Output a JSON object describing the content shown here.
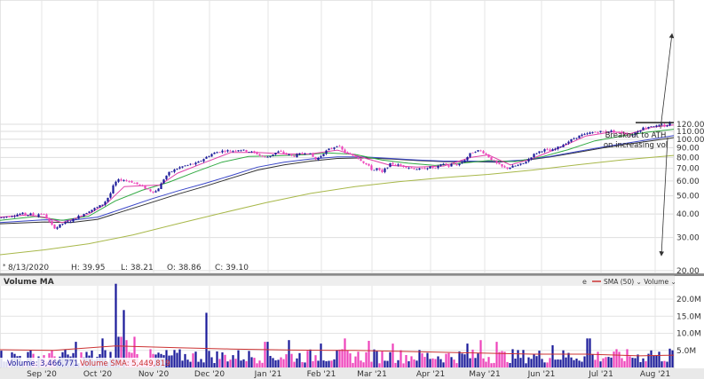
{
  "chart_data": {
    "type": "candlestick",
    "scale": "log",
    "grid": true,
    "price_ticks": [
      20,
      30,
      40,
      50,
      60,
      70,
      80,
      90,
      100,
      110,
      120
    ],
    "price_tick_labels": [
      "20.00",
      "30.00",
      "40.00",
      "50.00",
      "60.00",
      "70.00",
      "80.00",
      "90.00",
      "100.00",
      "110.00",
      "120.00"
    ],
    "x_labels": [
      "Sep '20",
      "Oct '20",
      "Nov '20",
      "Dec '20",
      "Jan '21",
      "Feb '21",
      "Mar '21",
      "Apr '21",
      "May '21",
      "Jun '21",
      "Jul '21",
      "Aug '21"
    ],
    "info": {
      "date": "8/13/2020",
      "high": "H: 39.95",
      "low": "L: 38.21",
      "open": "O: 38.86",
      "close": "C: 39.10"
    },
    "annotation": {
      "line1": "Breakout to ATH",
      "line2": "on increasing vol"
    },
    "volume_panel": {
      "title": "Volume MA",
      "legend": "SMA (50) ⌄ Volume ⌄",
      "legend_icon": "e",
      "tick_labels": [
        "5.0M",
        "10.0M",
        "15.0M",
        "20.0M"
      ],
      "volume_readout": "Volume: 3,466,771",
      "sma_readout": "Volume SMA: 5,449,819"
    },
    "price_series": [
      [
        0,
        38.2
      ],
      [
        5,
        38.6
      ],
      [
        10,
        39.0
      ],
      [
        15,
        39.3
      ],
      [
        20,
        39.8
      ],
      [
        25,
        40.2
      ],
      [
        30,
        39.6
      ],
      [
        35,
        40.0
      ],
      [
        40,
        39.0
      ],
      [
        45,
        40.4
      ],
      [
        50,
        39.5
      ],
      [
        55,
        36.5
      ],
      [
        58,
        35.0
      ],
      [
        60,
        34.2
      ],
      [
        63,
        33.6
      ],
      [
        66,
        34.5
      ],
      [
        70,
        35.5
      ],
      [
        75,
        36.0
      ],
      [
        80,
        36.8
      ],
      [
        85,
        38.0
      ],
      [
        90,
        39.2
      ],
      [
        95,
        40.2
      ],
      [
        100,
        41.5
      ],
      [
        105,
        42.5
      ],
      [
        110,
        43.5
      ],
      [
        115,
        44.8
      ],
      [
        120,
        47.5
      ],
      [
        125,
        52.0
      ],
      [
        128,
        57.0
      ],
      [
        131,
        59.5
      ],
      [
        135,
        61.0
      ],
      [
        140,
        60.5
      ],
      [
        145,
        60.0
      ],
      [
        150,
        59.0
      ],
      [
        155,
        57.5
      ],
      [
        160,
        56.0
      ],
      [
        165,
        54.5
      ],
      [
        170,
        53.0
      ],
      [
        175,
        52.5
      ],
      [
        180,
        56.0
      ],
      [
        185,
        62.0
      ],
      [
        190,
        66.0
      ],
      [
        195,
        68.0
      ],
      [
        200,
        70.0
      ],
      [
        205,
        71.5
      ],
      [
        210,
        72.5
      ],
      [
        215,
        73.5
      ],
      [
        220,
        74.0
      ],
      [
        225,
        76.0
      ],
      [
        230,
        79.0
      ],
      [
        235,
        81.5
      ],
      [
        240,
        84.0
      ],
      [
        245,
        85.5
      ],
      [
        250,
        86.5
      ],
      [
        255,
        87.0
      ],
      [
        260,
        86.5
      ],
      [
        265,
        87.5
      ],
      [
        270,
        88.0
      ],
      [
        275,
        87.0
      ],
      [
        280,
        86.0
      ],
      [
        285,
        85.0
      ],
      [
        290,
        83.5
      ],
      [
        295,
        81.0
      ],
      [
        300,
        80.0
      ],
      [
        305,
        82.0
      ],
      [
        310,
        84.5
      ],
      [
        315,
        86.0
      ],
      [
        320,
        84.0
      ],
      [
        325,
        82.5
      ],
      [
        330,
        81.0
      ],
      [
        335,
        82.5
      ],
      [
        340,
        84.0
      ],
      [
        345,
        85.0
      ],
      [
        350,
        83.0
      ],
      [
        355,
        78.0
      ],
      [
        360,
        80.0
      ],
      [
        365,
        85.0
      ],
      [
        370,
        88.0
      ],
      [
        375,
        90.0
      ],
      [
        380,
        93.0
      ],
      [
        385,
        88.0
      ],
      [
        390,
        84.0
      ],
      [
        395,
        82.5
      ],
      [
        400,
        81.0
      ],
      [
        405,
        78.5
      ],
      [
        410,
        75.0
      ],
      [
        415,
        72.0
      ],
      [
        420,
        68.0
      ],
      [
        425,
        70.0
      ],
      [
        430,
        66.0
      ],
      [
        435,
        70.5
      ],
      [
        440,
        74.0
      ],
      [
        445,
        73.5
      ],
      [
        450,
        72.5
      ],
      [
        455,
        72.0
      ],
      [
        460,
        71.0
      ],
      [
        465,
        70.0
      ],
      [
        470,
        69.5
      ],
      [
        475,
        69.0
      ],
      [
        480,
        70.5
      ],
      [
        485,
        71.0
      ],
      [
        490,
        70.0
      ],
      [
        495,
        72.0
      ],
      [
        500,
        74.5
      ],
      [
        505,
        71.5
      ],
      [
        510,
        74.0
      ],
      [
        515,
        73.0
      ],
      [
        520,
        75.0
      ],
      [
        525,
        79.0
      ],
      [
        530,
        84.0
      ],
      [
        535,
        86.5
      ],
      [
        540,
        87.0
      ],
      [
        545,
        85.0
      ],
      [
        550,
        81.0
      ],
      [
        555,
        77.0
      ],
      [
        560,
        74.0
      ],
      [
        565,
        71.5
      ],
      [
        570,
        70.0
      ],
      [
        575,
        71.0
      ],
      [
        580,
        72.0
      ],
      [
        585,
        73.0
      ],
      [
        590,
        74.5
      ],
      [
        595,
        78.0
      ],
      [
        600,
        82.0
      ],
      [
        605,
        85.0
      ],
      [
        610,
        87.0
      ],
      [
        615,
        88.0
      ],
      [
        620,
        86.5
      ],
      [
        625,
        88.5
      ],
      [
        630,
        91.0
      ],
      [
        635,
        94.0
      ],
      [
        640,
        97.0
      ],
      [
        645,
        100.0
      ],
      [
        650,
        103.0
      ],
      [
        655,
        105.0
      ],
      [
        660,
        106.0
      ],
      [
        665,
        108.0
      ],
      [
        670,
        109.0
      ],
      [
        675,
        110.0
      ],
      [
        680,
        109.5
      ],
      [
        685,
        110.5
      ],
      [
        690,
        110.0
      ],
      [
        695,
        109.0
      ],
      [
        700,
        108.5
      ],
      [
        705,
        107.0
      ],
      [
        710,
        104.0
      ],
      [
        715,
        108.0
      ],
      [
        720,
        112.0
      ],
      [
        725,
        115.0
      ],
      [
        730,
        116.5
      ],
      [
        735,
        118.0
      ],
      [
        740,
        117.0
      ],
      [
        745,
        118.5
      ],
      [
        750,
        117.0
      ],
      [
        752,
        119.0
      ],
      [
        755,
        123.5
      ],
      [
        759,
        124.5
      ]
    ],
    "ma_short": [
      [
        0,
        38.5
      ],
      [
        30,
        39.5
      ],
      [
        50,
        38.5
      ],
      [
        70,
        36.0
      ],
      [
        100,
        40.0
      ],
      [
        120,
        45.5
      ],
      [
        140,
        56.0
      ],
      [
        160,
        56.5
      ],
      [
        180,
        57.0
      ],
      [
        200,
        66.0
      ],
      [
        230,
        75.0
      ],
      [
        260,
        85.0
      ],
      [
        290,
        85.0
      ],
      [
        320,
        83.5
      ],
      [
        350,
        83.5
      ],
      [
        380,
        87.5
      ],
      [
        410,
        79.5
      ],
      [
        440,
        72.5
      ],
      [
        470,
        71.0
      ],
      [
        500,
        72.0
      ],
      [
        530,
        80.0
      ],
      [
        550,
        82.5
      ],
      [
        575,
        73.0
      ],
      [
        600,
        79.0
      ],
      [
        630,
        90.0
      ],
      [
        660,
        104.0
      ],
      [
        690,
        109.5
      ],
      [
        710,
        107.0
      ],
      [
        735,
        116.0
      ],
      [
        759,
        119.0
      ]
    ],
    "ma_mid": [
      [
        0,
        37.0
      ],
      [
        40,
        38.8
      ],
      [
        70,
        37.0
      ],
      [
        100,
        39.0
      ],
      [
        130,
        47.0
      ],
      [
        160,
        53.5
      ],
      [
        190,
        59.0
      ],
      [
        220,
        67.0
      ],
      [
        250,
        75.5
      ],
      [
        280,
        81.0
      ],
      [
        310,
        81.5
      ],
      [
        340,
        82.5
      ],
      [
        370,
        84.5
      ],
      [
        400,
        83.0
      ],
      [
        430,
        77.5
      ],
      [
        460,
        74.5
      ],
      [
        490,
        72.5
      ],
      [
        520,
        74.5
      ],
      [
        550,
        77.0
      ],
      [
        580,
        76.0
      ],
      [
        610,
        80.5
      ],
      [
        640,
        88.0
      ],
      [
        670,
        98.0
      ],
      [
        700,
        104.0
      ],
      [
        730,
        109.0
      ],
      [
        759,
        113.0
      ]
    ],
    "ma_long_blue": [
      [
        0,
        36.0
      ],
      [
        50,
        37.3
      ],
      [
        80,
        37.0
      ],
      [
        110,
        38.5
      ],
      [
        140,
        43.0
      ],
      [
        170,
        48.0
      ],
      [
        200,
        53.0
      ],
      [
        230,
        58.0
      ],
      [
        260,
        64.0
      ],
      [
        290,
        71.0
      ],
      [
        320,
        75.5
      ],
      [
        350,
        78.5
      ],
      [
        380,
        80.5
      ],
      [
        410,
        80.5
      ],
      [
        440,
        79.0
      ],
      [
        470,
        77.5
      ],
      [
        500,
        76.5
      ],
      [
        530,
        76.5
      ],
      [
        560,
        76.0
      ],
      [
        590,
        77.5
      ],
      [
        620,
        81.0
      ],
      [
        650,
        86.0
      ],
      [
        680,
        91.0
      ],
      [
        710,
        96.0
      ],
      [
        740,
        101.0
      ],
      [
        759,
        104.5
      ]
    ],
    "ma_long_dark": [
      [
        0,
        35.5
      ],
      [
        50,
        36.3
      ],
      [
        80,
        36.0
      ],
      [
        110,
        37.5
      ],
      [
        140,
        41.5
      ],
      [
        170,
        46.0
      ],
      [
        200,
        51.0
      ],
      [
        230,
        56.0
      ],
      [
        260,
        62.0
      ],
      [
        290,
        68.5
      ],
      [
        320,
        73.0
      ],
      [
        350,
        76.5
      ],
      [
        380,
        79.0
      ],
      [
        410,
        79.5
      ],
      [
        440,
        78.5
      ],
      [
        470,
        77.0
      ],
      [
        500,
        76.0
      ],
      [
        530,
        76.0
      ],
      [
        560,
        75.5
      ],
      [
        590,
        77.0
      ],
      [
        620,
        80.5
      ],
      [
        650,
        85.0
      ],
      [
        680,
        90.0
      ],
      [
        710,
        94.5
      ],
      [
        740,
        99.0
      ],
      [
        759,
        102.0
      ]
    ],
    "ma_200": [
      [
        0,
        24.3
      ],
      [
        50,
        25.8
      ],
      [
        100,
        27.8
      ],
      [
        150,
        31.0
      ],
      [
        200,
        35.5
      ],
      [
        250,
        40.5
      ],
      [
        300,
        46.0
      ],
      [
        350,
        51.5
      ],
      [
        400,
        56.0
      ],
      [
        450,
        59.5
      ],
      [
        500,
        62.5
      ],
      [
        550,
        65.0
      ],
      [
        600,
        68.5
      ],
      [
        650,
        73.0
      ],
      [
        700,
        77.5
      ],
      [
        759,
        82.0
      ]
    ],
    "resistance_line": {
      "x0": 716,
      "x1": 759,
      "price": 122.5
    },
    "arrows": [
      {
        "from": [
          752,
          155
        ],
        "to": [
          745,
          288
        ]
      },
      {
        "from": [
          744,
          145
        ],
        "to": [
          757,
          38
        ]
      }
    ],
    "volume_spikes_m": [
      [
        132,
        24.5
      ],
      [
        135,
        9.0
      ],
      [
        140,
        16.8
      ],
      [
        143,
        8.0
      ],
      [
        232,
        16.0
      ],
      [
        152,
        9.0
      ],
      [
        115,
        8.5
      ],
      [
        85,
        7.5
      ],
      [
        300,
        7.5
      ],
      [
        325,
        8.0
      ],
      [
        362,
        7.0
      ],
      [
        388,
        8.5
      ],
      [
        415,
        7.8
      ],
      [
        443,
        7.0
      ],
      [
        526,
        7.0
      ],
      [
        542,
        8.0
      ],
      [
        560,
        7.5
      ],
      [
        623,
        6.5
      ],
      [
        663,
        8.5
      ],
      [
        733,
        5.0
      ],
      [
        755,
        5.5
      ]
    ]
  }
}
